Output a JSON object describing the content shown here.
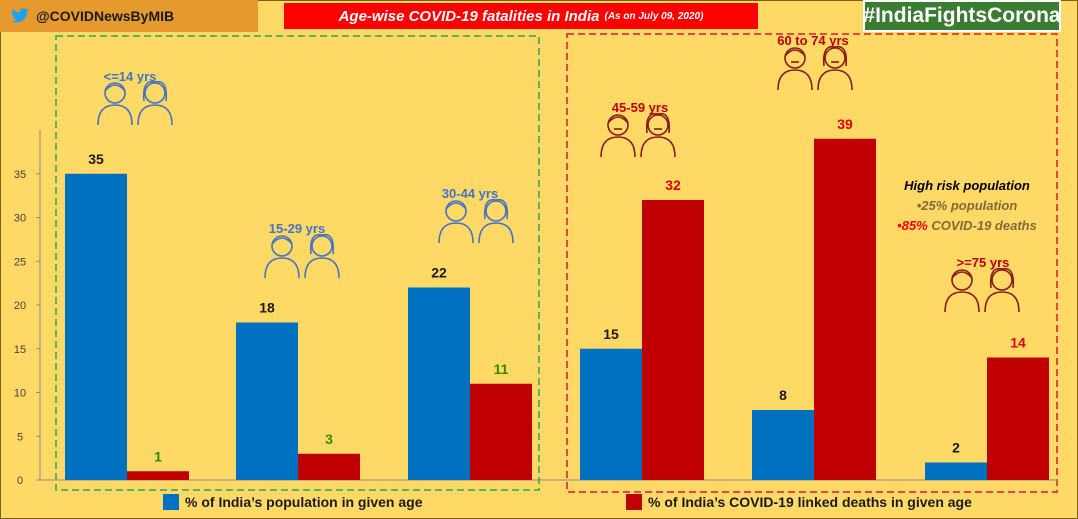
{
  "header": {
    "handle": "@COVIDNewsByMIB",
    "title": "Age-wise COVID-19 fatalities in India",
    "title_sub": "(As on July 09, 2020)",
    "hashtag": "#IndiaFightsCorona"
  },
  "colors": {
    "population": "#0070c0",
    "deaths": "#c00000",
    "low_group_label": "#4472c4",
    "high_group_label": "#c00000",
    "low_death_value": "#2e8b0a",
    "high_death_value": "#e00000",
    "low_box": "#2ca25f",
    "high_box": "#e0163c"
  },
  "note": {
    "heading": "High risk population",
    "line1": "•25% population",
    "line2_highlight": "•85%",
    "line2_rest": " COVID-19 deaths"
  },
  "chart_data": {
    "type": "bar",
    "title": "Age-wise COVID-19 fatalities in India",
    "categories": [
      "<=14 yrs",
      "15-29 yrs",
      "30-44 yrs",
      "45-59 yrs",
      "60 to 74 yrs",
      ">=75 yrs"
    ],
    "series": [
      {
        "name": "% of India’s population in given age",
        "values": [
          35,
          18,
          22,
          15,
          8,
          2
        ]
      },
      {
        "name": "% of India’s COVID-19 linked deaths in given age",
        "values": [
          1,
          3,
          11,
          32,
          39,
          14
        ]
      }
    ],
    "yticks": [
      0,
      5,
      10,
      15,
      20,
      25,
      30,
      35
    ],
    "ylim": [
      0,
      40
    ],
    "grid": false,
    "legend": "bottom"
  }
}
